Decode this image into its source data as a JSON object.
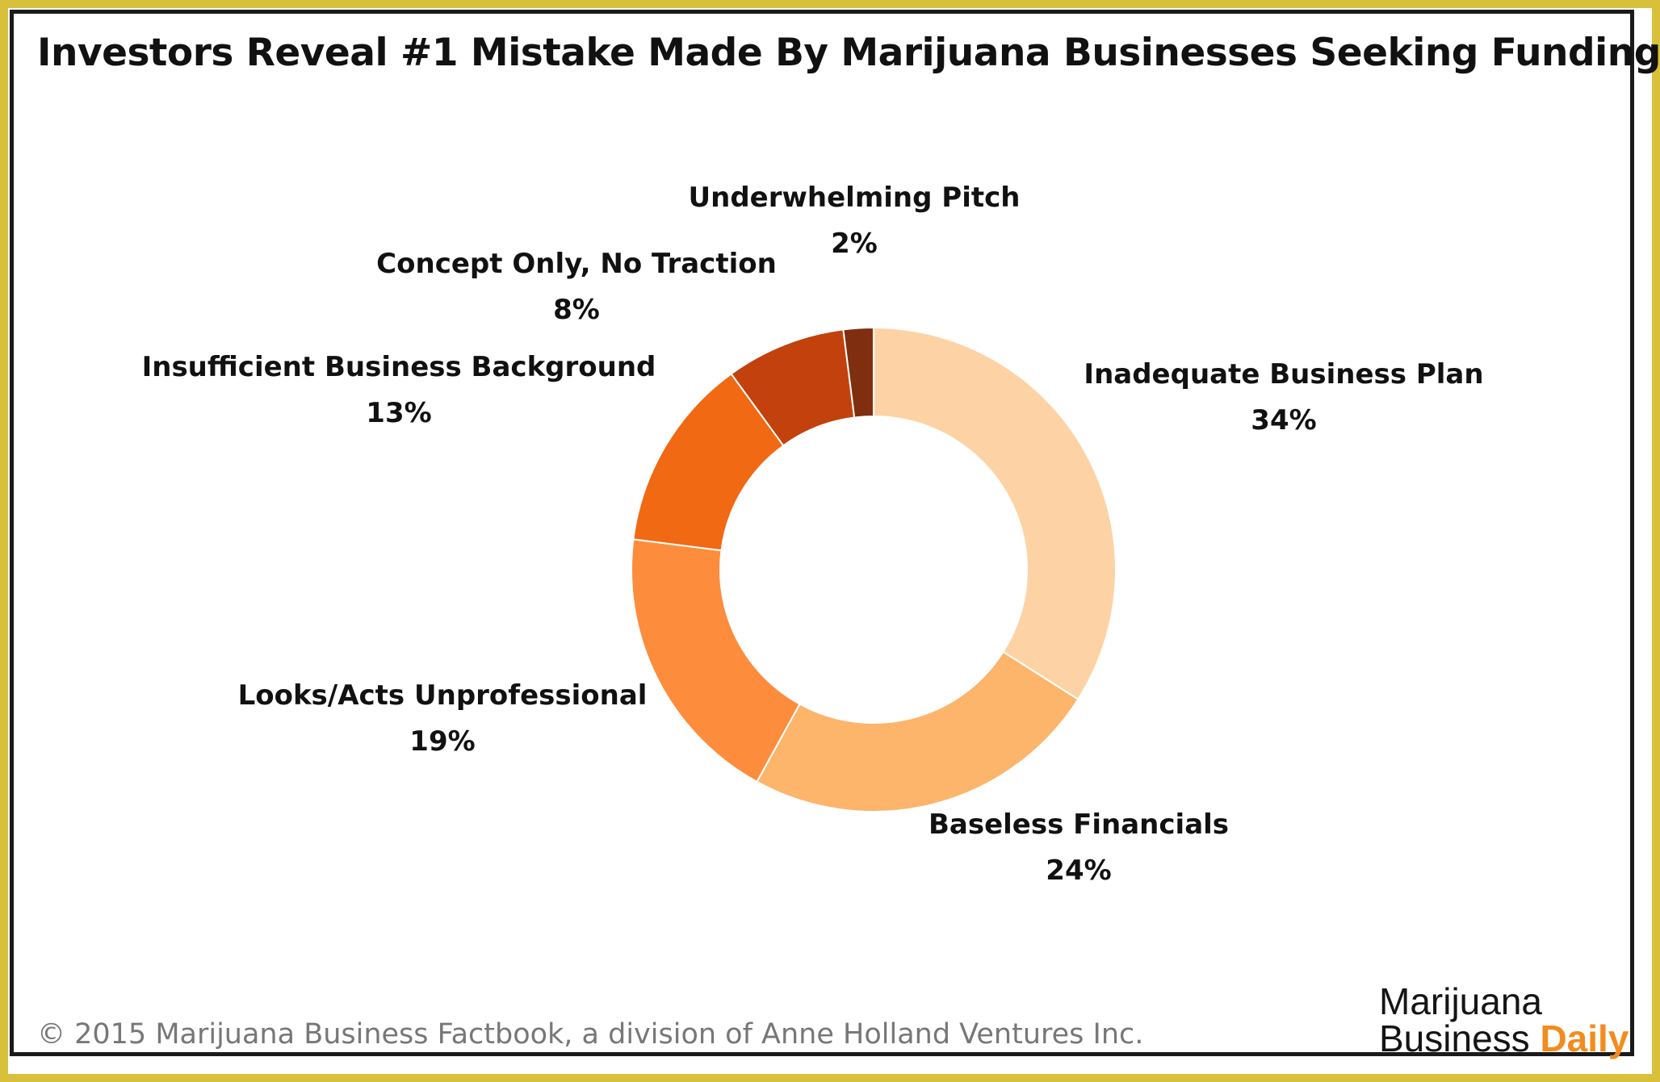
{
  "title": "Investors Reveal #1 Mistake Made By Marijuana Businesses Seeking Funding",
  "footer": "© 2015 Marijuana Business Factbook, a division of Anne Holland Ventures Inc.",
  "logo": {
    "line1": "Marijuana",
    "line2_plain": "Business ",
    "line2_accent": "Daily"
  },
  "colors": {
    "frame_gold": "#d8c03a",
    "logo_accent": "#f28c1e"
  },
  "chart_data": {
    "type": "pie",
    "variant": "donut",
    "title": "Investors Reveal #1 Mistake Made By Marijuana Businesses Seeking Funding",
    "legend": "none",
    "start": "top, clockwise",
    "slices": [
      {
        "label": "Inadequate Business Plan",
        "value": 34,
        "value_label": "34%",
        "color": "#fdd3a5"
      },
      {
        "label": "Baseless Financials",
        "value": 24,
        "value_label": "24%",
        "color": "#fdb46b"
      },
      {
        "label": "Looks/Acts Unprofessional",
        "value": 19,
        "value_label": "19%",
        "color": "#fd8d3c"
      },
      {
        "label": "Insufficient Business Background",
        "value": 13,
        "value_label": "13%",
        "color": "#f16913"
      },
      {
        "label": "Concept Only, No Traction",
        "value": 8,
        "value_label": "8%",
        "color": "#c2410c"
      },
      {
        "label": "Underwhelming Pitch",
        "value": 2,
        "value_label": "2%",
        "color": "#7f2e0f"
      }
    ]
  }
}
